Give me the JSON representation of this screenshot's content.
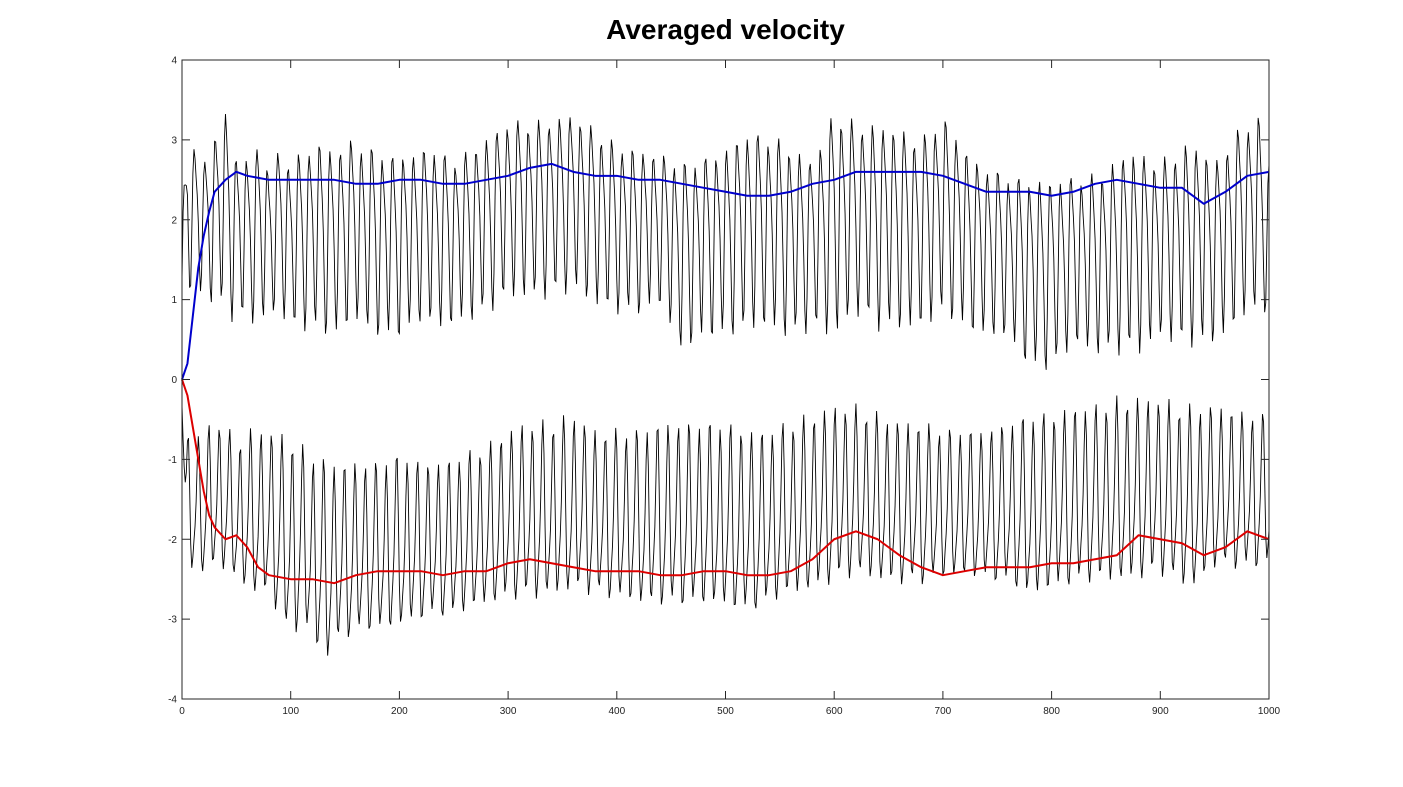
{
  "chart_data": {
    "type": "line",
    "title": "Averaged velocity",
    "xlabel": "",
    "ylabel": "",
    "xlim": [
      0,
      1000
    ],
    "ylim": [
      -4,
      4
    ],
    "x_ticks": [
      0,
      100,
      200,
      300,
      400,
      500,
      600,
      700,
      800,
      900,
      1000
    ],
    "y_ticks": [
      4,
      3,
      2,
      1,
      0,
      -1,
      -2,
      -3,
      -4
    ],
    "x_tick_labels": [
      "0",
      "100",
      "200",
      "300",
      "400",
      "500",
      "600",
      "700",
      "800",
      "900",
      "1000"
    ],
    "y_tick_labels": [
      "4",
      "3",
      "2",
      "1",
      "0",
      "-1",
      "-2",
      "-3",
      "-4"
    ],
    "grid": false,
    "legend": "none",
    "series": [
      {
        "color": "#000000",
        "style": "thin oscillating raw signal (upper component, upper envelope)",
        "x": [
          0,
          5,
          10,
          15,
          20,
          25,
          30,
          40,
          50,
          60,
          70,
          80,
          90,
          100,
          110,
          120,
          130,
          140,
          150,
          170,
          190,
          210,
          230,
          250,
          270,
          300,
          330,
          360,
          400,
          430,
          460,
          490,
          520,
          550,
          580,
          600,
          620,
          650,
          680,
          700,
          730,
          760,
          780,
          800,
          830,
          850,
          870,
          900,
          930,
          950,
          970,
          990,
          1000
        ],
        "values": [
          2.2,
          3.5,
          3.2,
          3.1,
          2.9,
          3.0,
          3.4,
          3.6,
          3.1,
          3.0,
          3.2,
          2.9,
          3.1,
          3.0,
          3.1,
          3.2,
          3.3,
          3.1,
          3.3,
          3.2,
          3.1,
          3.1,
          3.2,
          3.0,
          3.2,
          3.5,
          3.5,
          3.6,
          3.2,
          3.1,
          3.0,
          3.1,
          3.4,
          3.3,
          3.0,
          3.7,
          3.5,
          3.5,
          3.3,
          3.6,
          3.0,
          2.8,
          2.8,
          2.8,
          2.8,
          2.9,
          3.2,
          3.0,
          3.3,
          3.0,
          3.4,
          3.6,
          3.0
        ]
      },
      {
        "color": "#000000",
        "style": "thin oscillating raw signal (upper component, lower envelope)",
        "x": [
          0,
          5,
          10,
          20,
          30,
          40,
          50,
          60,
          70,
          80,
          90,
          100,
          120,
          140,
          160,
          180,
          200,
          220,
          240,
          260,
          280,
          300,
          320,
          340,
          360,
          380,
          400,
          420,
          440,
          460,
          480,
          500,
          520,
          540,
          560,
          580,
          600,
          620,
          640,
          660,
          680,
          700,
          720,
          740,
          760,
          780,
          800,
          820,
          840,
          860,
          880,
          900,
          920,
          940,
          960,
          980,
          1000
        ],
        "values": [
          0.0,
          0.8,
          1.2,
          1.0,
          0.9,
          0.9,
          0.6,
          0.8,
          0.6,
          0.8,
          0.8,
          0.6,
          0.6,
          0.5,
          0.7,
          0.5,
          0.5,
          0.7,
          0.6,
          0.7,
          0.8,
          1.0,
          1.0,
          1.0,
          1.1,
          0.9,
          0.8,
          0.8,
          0.9,
          0.3,
          0.5,
          0.5,
          0.6,
          0.6,
          0.5,
          0.6,
          0.5,
          0.8,
          0.6,
          0.6,
          0.6,
          0.8,
          0.6,
          0.5,
          0.5,
          0.1,
          0.1,
          0.4,
          0.3,
          0.3,
          0.3,
          0.5,
          0.4,
          0.4,
          0.5,
          0.8,
          0.8
        ]
      },
      {
        "color": "#000000",
        "style": "thin oscillating raw signal (lower component, upper envelope)",
        "x": [
          0,
          10,
          20,
          30,
          40,
          50,
          60,
          80,
          100,
          120,
          140,
          160,
          180,
          200,
          220,
          240,
          260,
          280,
          300,
          320,
          340,
          360,
          380,
          400,
          420,
          440,
          460,
          480,
          500,
          520,
          540,
          560,
          580,
          600,
          620,
          640,
          660,
          680,
          700,
          720,
          740,
          760,
          780,
          800,
          820,
          840,
          860,
          880,
          900,
          920,
          940,
          960,
          980,
          1000
        ],
        "values": [
          -0.5,
          -0.7,
          -0.6,
          -0.5,
          -0.5,
          -0.8,
          -0.6,
          -0.6,
          -0.7,
          -0.9,
          -1.0,
          -1.0,
          -1.0,
          -0.9,
          -1.0,
          -1.0,
          -0.9,
          -0.8,
          -0.6,
          -0.5,
          -0.5,
          -0.4,
          -0.6,
          -0.6,
          -0.6,
          -0.5,
          -0.5,
          -0.5,
          -0.5,
          -0.6,
          -0.6,
          -0.5,
          -0.4,
          -0.3,
          -0.3,
          -0.4,
          -0.5,
          -0.5,
          -0.6,
          -0.6,
          -0.6,
          -0.5,
          -0.4,
          -0.4,
          -0.3,
          -0.3,
          -0.2,
          -0.2,
          -0.2,
          -0.3,
          -0.3,
          -0.3,
          -0.4,
          -0.4
        ]
      },
      {
        "color": "#000000",
        "style": "thin oscillating raw signal (lower component, lower envelope)",
        "x": [
          0,
          5,
          10,
          20,
          30,
          40,
          50,
          60,
          70,
          80,
          90,
          100,
          110,
          120,
          130,
          140,
          150,
          170,
          190,
          210,
          230,
          250,
          270,
          300,
          330,
          360,
          400,
          430,
          460,
          490,
          520,
          550,
          580,
          600,
          620,
          650,
          680,
          700,
          730,
          760,
          780,
          800,
          830,
          850,
          870,
          900,
          930,
          950,
          970,
          990,
          1000
        ],
        "values": [
          -0.3,
          -2.9,
          -2.6,
          -2.6,
          -2.6,
          -2.6,
          -2.7,
          -2.9,
          -2.9,
          -3.0,
          -3.2,
          -3.6,
          -3.3,
          -3.5,
          -3.9,
          -3.6,
          -3.5,
          -3.4,
          -3.4,
          -3.3,
          -3.2,
          -3.2,
          -3.1,
          -3.0,
          -3.0,
          -2.9,
          -3.0,
          -3.1,
          -3.1,
          -3.1,
          -3.2,
          -3.0,
          -2.9,
          -2.8,
          -2.7,
          -2.8,
          -2.8,
          -2.7,
          -2.7,
          -2.8,
          -3.0,
          -2.9,
          -2.8,
          -2.8,
          -2.8,
          -2.7,
          -2.9,
          -2.6,
          -2.6,
          -2.6,
          -2.5
        ]
      },
      {
        "color": "#0000cc",
        "style": "thick smooth averaged line (upper)",
        "x": [
          0,
          5,
          10,
          15,
          20,
          25,
          30,
          40,
          50,
          60,
          80,
          100,
          120,
          140,
          160,
          180,
          200,
          220,
          240,
          260,
          280,
          300,
          320,
          340,
          360,
          380,
          400,
          420,
          440,
          460,
          480,
          500,
          520,
          540,
          560,
          580,
          600,
          620,
          640,
          660,
          680,
          700,
          720,
          740,
          760,
          780,
          800,
          820,
          840,
          860,
          880,
          900,
          920,
          940,
          960,
          980,
          1000
        ],
        "values": [
          0.0,
          0.2,
          0.8,
          1.4,
          1.8,
          2.1,
          2.35,
          2.5,
          2.6,
          2.55,
          2.5,
          2.5,
          2.5,
          2.5,
          2.45,
          2.45,
          2.5,
          2.5,
          2.45,
          2.45,
          2.5,
          2.55,
          2.65,
          2.7,
          2.6,
          2.55,
          2.55,
          2.5,
          2.5,
          2.45,
          2.4,
          2.35,
          2.3,
          2.3,
          2.35,
          2.45,
          2.5,
          2.6,
          2.6,
          2.6,
          2.6,
          2.55,
          2.45,
          2.35,
          2.35,
          2.35,
          2.3,
          2.35,
          2.45,
          2.5,
          2.45,
          2.4,
          2.4,
          2.2,
          2.35,
          2.55,
          2.6
        ]
      },
      {
        "color": "#dd0000",
        "style": "thick smooth averaged line (lower)",
        "x": [
          0,
          5,
          10,
          15,
          20,
          25,
          30,
          40,
          50,
          60,
          70,
          80,
          100,
          120,
          140,
          160,
          180,
          200,
          220,
          240,
          260,
          280,
          300,
          320,
          340,
          360,
          380,
          400,
          420,
          440,
          460,
          480,
          500,
          520,
          540,
          560,
          580,
          600,
          620,
          640,
          660,
          680,
          700,
          720,
          740,
          760,
          780,
          800,
          820,
          840,
          860,
          880,
          900,
          920,
          940,
          960,
          980,
          1000
        ],
        "values": [
          0.0,
          -0.2,
          -0.6,
          -1.0,
          -1.4,
          -1.7,
          -1.85,
          -2.0,
          -1.95,
          -2.1,
          -2.35,
          -2.45,
          -2.5,
          -2.5,
          -2.55,
          -2.45,
          -2.4,
          -2.4,
          -2.4,
          -2.45,
          -2.4,
          -2.4,
          -2.3,
          -2.25,
          -2.3,
          -2.35,
          -2.4,
          -2.4,
          -2.4,
          -2.45,
          -2.45,
          -2.4,
          -2.4,
          -2.45,
          -2.45,
          -2.4,
          -2.25,
          -2.0,
          -1.9,
          -2.0,
          -2.2,
          -2.35,
          -2.45,
          -2.4,
          -2.35,
          -2.35,
          -2.35,
          -2.3,
          -2.3,
          -2.25,
          -2.2,
          -1.95,
          -2.0,
          -2.05,
          -2.2,
          -2.1,
          -1.9,
          -2.0
        ]
      }
    ]
  }
}
